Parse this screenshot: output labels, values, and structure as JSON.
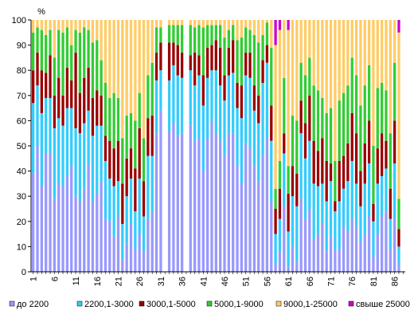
{
  "chart_data": {
    "type": "bar",
    "stacked": true,
    "title": "",
    "xlabel": "",
    "ylabel": "%",
    "ylim": [
      0,
      100
    ],
    "yticks": [
      0,
      10,
      20,
      30,
      40,
      50,
      60,
      70,
      80,
      90,
      100
    ],
    "xticks": [
      1,
      6,
      11,
      16,
      21,
      26,
      31,
      36,
      41,
      46,
      51,
      56,
      61,
      66,
      71,
      76,
      81,
      86
    ],
    "grid": false,
    "legend_position": "bottom",
    "categories": [
      1,
      2,
      3,
      4,
      5,
      6,
      7,
      8,
      9,
      10,
      11,
      12,
      13,
      14,
      15,
      16,
      17,
      18,
      19,
      20,
      21,
      22,
      23,
      24,
      25,
      26,
      27,
      28,
      29,
      30,
      31,
      32,
      33,
      34,
      35,
      36,
      37,
      38,
      39,
      40,
      41,
      42,
      43,
      44,
      45,
      46,
      47,
      48,
      49,
      50,
      51,
      52,
      53,
      54,
      55,
      56,
      57,
      58,
      59,
      60,
      61,
      62,
      63,
      64,
      65,
      66,
      67,
      68,
      69,
      70,
      71,
      72,
      73,
      74,
      75,
      76,
      77,
      78,
      79,
      80,
      81,
      82,
      83,
      84,
      85,
      86,
      87,
      88
    ],
    "series": [
      {
        "name": "до 2200",
        "color": "#9999ff",
        "values": [
          39,
          50,
          34,
          47,
          47,
          29,
          35,
          34,
          38,
          42,
          30,
          28,
          33,
          43,
          28,
          31,
          36,
          21,
          20,
          14,
          22,
          5,
          11,
          19,
          9,
          15,
          8,
          21,
          24,
          55,
          64,
          0,
          56,
          59,
          54,
          55,
          0,
          58,
          52,
          53,
          40,
          53,
          60,
          55,
          52,
          46,
          55,
          55,
          42,
          35,
          51,
          49,
          42,
          36,
          46,
          53,
          28,
          3,
          8,
          26,
          2,
          10,
          4,
          29,
          21,
          25,
          13,
          15,
          19,
          8,
          14,
          9,
          9,
          18,
          16,
          21,
          18,
          12,
          15,
          22,
          6,
          15,
          22,
          24,
          9,
          21,
          3,
          0
        ]
      },
      {
        "name": "2200,1-3000",
        "color": "#33ccff",
        "values": [
          28,
          24,
          29,
          22,
          22,
          28,
          26,
          24,
          27,
          23,
          27,
          27,
          26,
          21,
          26,
          27,
          22,
          23,
          17,
          20,
          14,
          14,
          19,
          18,
          15,
          22,
          14,
          25,
          22,
          21,
          16,
          0,
          20,
          23,
          24,
          22,
          0,
          22,
          22,
          25,
          26,
          24,
          20,
          25,
          22,
          22,
          23,
          24,
          23,
          26,
          27,
          28,
          22,
          23,
          29,
          30,
          24,
          12,
          13,
          21,
          14,
          20,
          22,
          26,
          24,
          27,
          22,
          19,
          16,
          20,
          22,
          15,
          19,
          15,
          20,
          23,
          17,
          14,
          20,
          21,
          14,
          20,
          16,
          17,
          12,
          22,
          7,
          0
        ]
      },
      {
        "name": "3000,1-5000",
        "color": "#990000",
        "values": [
          13,
          13,
          17,
          10,
          17,
          13,
          16,
          12,
          16,
          11,
          30,
          16,
          18,
          17,
          15,
          14,
          12,
          10,
          15,
          15,
          16,
          16,
          15,
          12,
          17,
          20,
          14,
          15,
          16,
          11,
          11,
          0,
          15,
          9,
          12,
          10,
          0,
          6,
          13,
          8,
          12,
          12,
          10,
          12,
          15,
          10,
          11,
          13,
          10,
          13,
          9,
          10,
          10,
          11,
          9,
          7,
          14,
          10,
          12,
          8,
          15,
          12,
          13,
          13,
          14,
          18,
          17,
          14,
          18,
          16,
          7,
          4,
          16,
          13,
          15,
          19,
          20,
          14,
          16,
          17,
          7,
          14,
          17,
          11,
          12,
          17,
          7,
          0
        ]
      },
      {
        "name": "5000,1-9000",
        "color": "#33cc33",
        "values": [
          15,
          10,
          16,
          15,
          10,
          15,
          19,
          25,
          16,
          14,
          9,
          24,
          20,
          15,
          22,
          20,
          14,
          21,
          17,
          22,
          17,
          18,
          17,
          14,
          19,
          14,
          17,
          17,
          21,
          10,
          6,
          0,
          7,
          7,
          8,
          11,
          0,
          12,
          10,
          12,
          19,
          9,
          8,
          6,
          9,
          15,
          7,
          6,
          17,
          19,
          10,
          9,
          20,
          21,
          10,
          9,
          23,
          8,
          11,
          22,
          11,
          20,
          21,
          15,
          19,
          15,
          22,
          24,
          16,
          19,
          22,
          16,
          24,
          25,
          23,
          22,
          23,
          26,
          23,
          22,
          23,
          24,
          20,
          20,
          22,
          23,
          12,
          0
        ]
      },
      {
        "name": "9000,1-25000",
        "color": "#ffcc66",
        "values": [
          5,
          3,
          4,
          6,
          4,
          15,
          4,
          5,
          3,
          10,
          4,
          5,
          3,
          4,
          9,
          8,
          16,
          25,
          31,
          29,
          31,
          47,
          38,
          37,
          40,
          29,
          47,
          22,
          17,
          3,
          3,
          0,
          2,
          2,
          2,
          2,
          0,
          2,
          3,
          2,
          3,
          2,
          2,
          2,
          2,
          7,
          4,
          2,
          8,
          7,
          3,
          4,
          6,
          9,
          6,
          1,
          11,
          57,
          52,
          23,
          54,
          38,
          40,
          17,
          22,
          15,
          26,
          28,
          31,
          37,
          35,
          56,
          32,
          29,
          26,
          15,
          22,
          34,
          26,
          18,
          50,
          27,
          25,
          28,
          45,
          17,
          66,
          0
        ]
      },
      {
        "name": "свыше 25000",
        "color": "#cc00cc",
        "values": [
          0,
          0,
          0,
          0,
          0,
          0,
          0,
          0,
          0,
          0,
          0,
          0,
          0,
          0,
          0,
          0,
          0,
          0,
          0,
          0,
          0,
          0,
          0,
          0,
          0,
          0,
          0,
          0,
          0,
          0,
          0,
          0,
          0,
          0,
          0,
          0,
          0,
          0,
          0,
          0,
          0,
          0,
          0,
          0,
          0,
          0,
          0,
          0,
          0,
          0,
          0,
          0,
          0,
          0,
          0,
          0,
          0,
          10,
          4,
          0,
          4,
          0,
          0,
          0,
          0,
          0,
          0,
          0,
          0,
          0,
          0,
          0,
          0,
          0,
          0,
          0,
          0,
          0,
          0,
          0,
          0,
          0,
          0,
          0,
          0,
          0,
          5,
          0
        ]
      }
    ]
  }
}
